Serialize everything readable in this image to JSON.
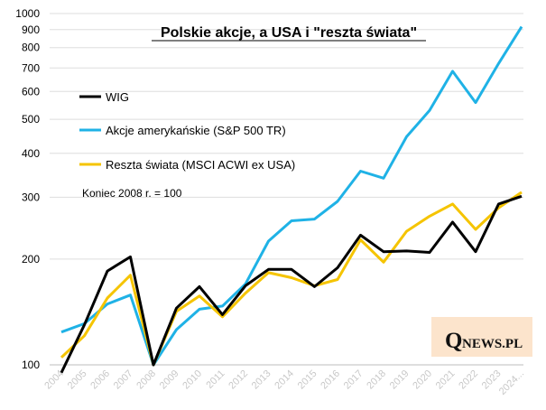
{
  "chart_data": {
    "type": "line",
    "title": "Polskie akcje, a USA i \"reszta świata\"",
    "yscale": "log",
    "ylim": [
      100,
      1000
    ],
    "yticks": [
      100,
      200,
      300,
      400,
      500,
      600,
      700,
      800,
      900,
      1000
    ],
    "ytick_labels": [
      "100",
      "200",
      "300",
      "400",
      "500",
      "600",
      "700",
      "800",
      "900",
      "1000"
    ],
    "categories": [
      "2004",
      "2005",
      "2006",
      "2007",
      "2008",
      "2009",
      "2010",
      "2011",
      "2012",
      "2013",
      "2014",
      "2015",
      "2016",
      "2017",
      "2018",
      "2019",
      "2020",
      "2021",
      "2022",
      "2023",
      "2024..."
    ],
    "series": [
      {
        "name": "WIG",
        "color": "#000000",
        "values": [
          95,
          130,
          185,
          203,
          100,
          145,
          167,
          139,
          168,
          187,
          187,
          167,
          189,
          234,
          210,
          211,
          209,
          255,
          210,
          287,
          302
        ]
      },
      {
        "name": "Akcje amerykańskie (S&P 500 TR)",
        "color": "#1fb2e6",
        "values": [
          124,
          131,
          149,
          158,
          100,
          126,
          144,
          147,
          170,
          225,
          257,
          260,
          292,
          356,
          340,
          446,
          530,
          685,
          558,
          721,
          917
        ]
      },
      {
        "name": "Reszta świata (MSCI ACWI ex USA)",
        "color": "#f5c400",
        "values": [
          105,
          121,
          155,
          180,
          100,
          142,
          157,
          137,
          160,
          183,
          177,
          168,
          175,
          227,
          196,
          240,
          265,
          287,
          243,
          280,
          310
        ]
      }
    ],
    "annotation": "Koniec 2008 r. = 100",
    "legend_position": "upper-left",
    "logo": {
      "q": "Q",
      "rest": "NEWS.PL"
    }
  }
}
